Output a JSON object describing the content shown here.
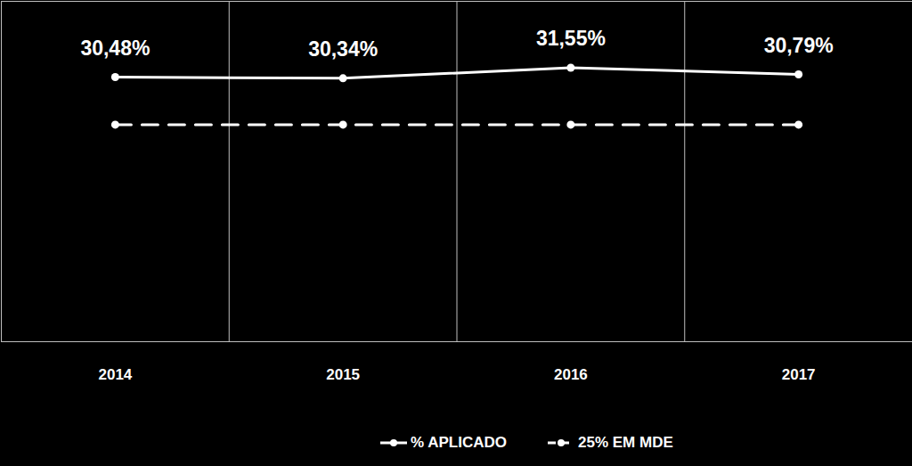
{
  "chart_data": {
    "type": "line",
    "categories": [
      "2014",
      "2015",
      "2016",
      "2017"
    ],
    "series": [
      {
        "name": "% APLICADO",
        "color": "#ffffff",
        "values": [
          30.48,
          30.34,
          31.55,
          30.79
        ],
        "value_labels": [
          "30,48%",
          "30,34%",
          "31,55%",
          "30,79%"
        ],
        "data_labels": true,
        "marker": "circle",
        "line_style": "solid"
      },
      {
        "name": "25% EM MDE",
        "color": "#ffffff",
        "values": [
          25,
          25,
          25,
          25
        ],
        "marker": "circle",
        "line_style": "dashed"
      }
    ],
    "ylim": [
      0,
      39.2
    ],
    "yticks": [],
    "tick_labels": "x",
    "grid": true,
    "legend": "bottom"
  }
}
